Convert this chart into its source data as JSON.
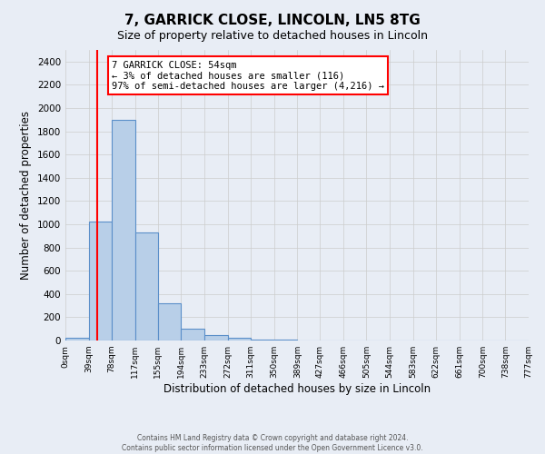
{
  "title": "7, GARRICK CLOSE, LINCOLN, LN5 8TG",
  "subtitle": "Size of property relative to detached houses in Lincoln",
  "xlabel": "Distribution of detached houses by size in Lincoln",
  "ylabel": "Number of detached properties",
  "bar_edges": [
    0,
    39,
    78,
    117,
    155,
    194,
    233,
    272,
    311,
    350,
    389,
    427,
    466,
    505,
    544,
    583,
    622,
    661,
    700,
    738,
    777
  ],
  "bar_heights": [
    25,
    1025,
    1900,
    930,
    320,
    105,
    50,
    25,
    10,
    5,
    0,
    0,
    0,
    0,
    0,
    0,
    0,
    0,
    0,
    0
  ],
  "bar_color": "#b8cfe8",
  "bar_edge_color": "#5b8fc9",
  "red_line_x": 54,
  "annotation_text_line1": "7 GARRICK CLOSE: 54sqm",
  "annotation_text_line2": "← 3% of detached houses are smaller (116)",
  "annotation_text_line3": "97% of semi-detached houses are larger (4,216) →",
  "annotation_box_color": "white",
  "annotation_box_edge_color": "red",
  "ylim_max": 2500,
  "yticks": [
    0,
    200,
    400,
    600,
    800,
    1000,
    1200,
    1400,
    1600,
    1800,
    2000,
    2200,
    2400
  ],
  "tick_labels": [
    "0sqm",
    "39sqm",
    "78sqm",
    "117sqm",
    "155sqm",
    "194sqm",
    "233sqm",
    "272sqm",
    "311sqm",
    "350sqm",
    "389sqm",
    "427sqm",
    "466sqm",
    "505sqm",
    "544sqm",
    "583sqm",
    "622sqm",
    "661sqm",
    "700sqm",
    "738sqm",
    "777sqm"
  ],
  "grid_color": "#cccccc",
  "background_color": "#e8edf5",
  "footer_line1": "Contains HM Land Registry data © Crown copyright and database right 2024.",
  "footer_line2": "Contains public sector information licensed under the Open Government Licence v3.0."
}
